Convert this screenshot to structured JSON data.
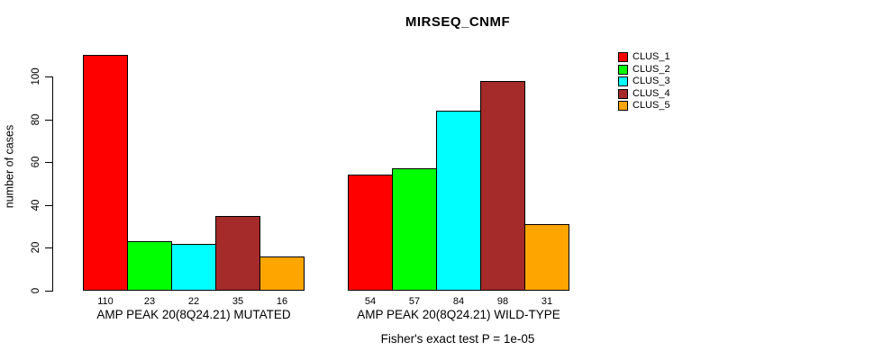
{
  "title": "MIRSEQ_CNMF",
  "y_axis": {
    "label": "number of cases"
  },
  "footer": "Fisher's exact test P = 1e-05",
  "chart_data": {
    "type": "bar",
    "title": "MIRSEQ_CNMF",
    "xlabel": "",
    "ylabel": "number of cases",
    "ylim": [
      0,
      115
    ],
    "yticks": [
      0,
      20,
      40,
      60,
      80,
      100
    ],
    "grid": false,
    "legend_position": "top-right",
    "bar_value_labels": true,
    "categories": [
      "AMP PEAK 20(8Q24.21) MUTATED",
      "AMP PEAK 20(8Q24.21) WILD-TYPE"
    ],
    "series": [
      {
        "name": "CLUS_1",
        "color": "#ff0000",
        "values": [
          110,
          54
        ]
      },
      {
        "name": "CLUS_2",
        "color": "#00ff00",
        "values": [
          23,
          57
        ]
      },
      {
        "name": "CLUS_3",
        "color": "#00ffff",
        "values": [
          22,
          84
        ]
      },
      {
        "name": "CLUS_4",
        "color": "#a52a2a",
        "values": [
          35,
          98
        ]
      },
      {
        "name": "CLUS_5",
        "color": "#ffa500",
        "values": [
          16,
          31
        ]
      }
    ],
    "annotation": "Fisher's exact test P = 1e-05"
  }
}
